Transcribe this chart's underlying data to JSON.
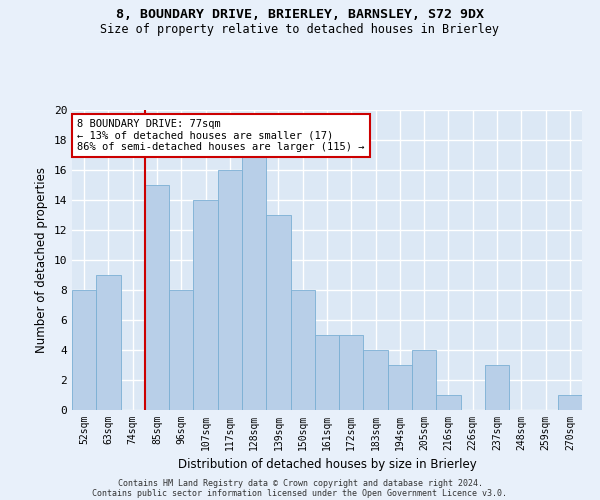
{
  "title1": "8, BOUNDARY DRIVE, BRIERLEY, BARNSLEY, S72 9DX",
  "title2": "Size of property relative to detached houses in Brierley",
  "xlabel": "Distribution of detached houses by size in Brierley",
  "ylabel": "Number of detached properties",
  "categories": [
    "52sqm",
    "63sqm",
    "74sqm",
    "85sqm",
    "96sqm",
    "107sqm",
    "117sqm",
    "128sqm",
    "139sqm",
    "150sqm",
    "161sqm",
    "172sqm",
    "183sqm",
    "194sqm",
    "205sqm",
    "216sqm",
    "226sqm",
    "237sqm",
    "248sqm",
    "259sqm",
    "270sqm"
  ],
  "values": [
    8,
    9,
    0,
    15,
    8,
    14,
    16,
    17,
    13,
    8,
    5,
    5,
    4,
    3,
    4,
    1,
    0,
    3,
    0,
    0,
    1
  ],
  "bar_color": "#b8cfe8",
  "bar_edge_color": "#7bafd4",
  "vline_x_index": 2,
  "annotation_text": "8 BOUNDARY DRIVE: 77sqm\n← 13% of detached houses are smaller (17)\n86% of semi-detached houses are larger (115) →",
  "annotation_box_color": "#ffffff",
  "annotation_box_edge": "#cc0000",
  "vline_color": "#cc0000",
  "ylim": [
    0,
    20
  ],
  "yticks": [
    0,
    2,
    4,
    6,
    8,
    10,
    12,
    14,
    16,
    18,
    20
  ],
  "bg_color": "#dce8f5",
  "grid_color": "#ffffff",
  "fig_bg_color": "#e8f0fa",
  "footer1": "Contains HM Land Registry data © Crown copyright and database right 2024.",
  "footer2": "Contains public sector information licensed under the Open Government Licence v3.0."
}
